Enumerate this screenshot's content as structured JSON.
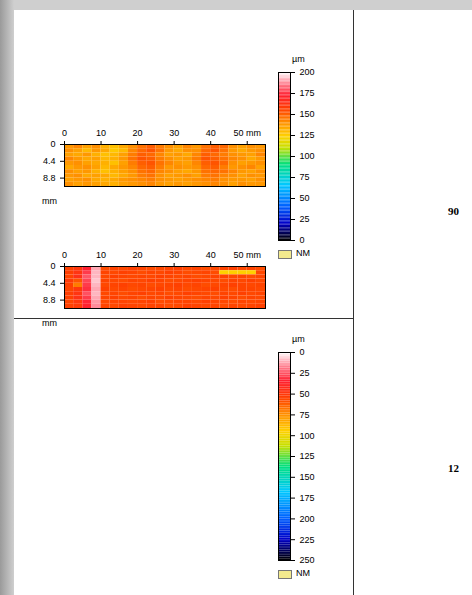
{
  "chart_data": [
    {
      "type": "heatmap",
      "xlim": [
        0,
        55
      ],
      "xticks": [
        0,
        10,
        20,
        30,
        40,
        {
          "value": 50,
          "label": "50 mm"
        }
      ],
      "ylim": [
        0,
        11
      ],
      "yticks": [
        0,
        4.4,
        8.8
      ],
      "y_label": "mm",
      "cells": {
        "x_bins": [
          0,
          2.5,
          5,
          7.5,
          10,
          12.5,
          15,
          17.5,
          20,
          22.5,
          25,
          27.5,
          30,
          32.5,
          35,
          37.5,
          40,
          42.5,
          45,
          47.5,
          50,
          52.5,
          55
        ],
        "y_bins": [
          0,
          1.1,
          2.2,
          3.3,
          4.4,
          5.5,
          6.6,
          7.7,
          8.8,
          9.9,
          11
        ],
        "values": [
          [
            138,
            142,
            136,
            140,
            132,
            128,
            134,
            140,
            146,
            150,
            144,
            140,
            136,
            142,
            138,
            146,
            150,
            148,
            140,
            136,
            140,
            138
          ],
          [
            140,
            136,
            130,
            138,
            134,
            126,
            130,
            142,
            148,
            152,
            146,
            138,
            134,
            140,
            140,
            148,
            152,
            146,
            138,
            134,
            138,
            140
          ],
          [
            136,
            134,
            138,
            132,
            128,
            130,
            136,
            144,
            150,
            148,
            142,
            136,
            138,
            134,
            142,
            150,
            148,
            144,
            140,
            138,
            136,
            142
          ],
          [
            142,
            138,
            134,
            136,
            130,
            132,
            138,
            146,
            152,
            150,
            144,
            140,
            136,
            138,
            144,
            152,
            150,
            146,
            142,
            140,
            134,
            138
          ],
          [
            138,
            140,
            136,
            134,
            132,
            128,
            136,
            144,
            150,
            152,
            146,
            142,
            138,
            136,
            142,
            150,
            152,
            148,
            140,
            136,
            138,
            140
          ],
          [
            134,
            138,
            140,
            136,
            130,
            134,
            138,
            142,
            148,
            150,
            144,
            138,
            140,
            138,
            140,
            148,
            150,
            144,
            138,
            140,
            142,
            136
          ],
          [
            140,
            136,
            138,
            132,
            128,
            132,
            136,
            140,
            146,
            148,
            142,
            140,
            136,
            134,
            138,
            146,
            148,
            146,
            142,
            138,
            136,
            140
          ],
          [
            138,
            140,
            134,
            136,
            134,
            130,
            134,
            138,
            144,
            146,
            140,
            136,
            138,
            140,
            136,
            144,
            146,
            142,
            140,
            136,
            140,
            138
          ],
          [
            136,
            138,
            140,
            134,
            132,
            134,
            138,
            140,
            142,
            144,
            140,
            138,
            136,
            138,
            140,
            142,
            144,
            140,
            138,
            138,
            136,
            140
          ],
          [
            140,
            136,
            138,
            136,
            134,
            132,
            136,
            138,
            140,
            142,
            138,
            136,
            138,
            136,
            138,
            140,
            142,
            140,
            136,
            140,
            138,
            138
          ]
        ]
      },
      "colorbar": {
        "label": "µm",
        "range": [
          0,
          200
        ],
        "ticks": [
          0,
          25,
          50,
          75,
          100,
          125,
          150,
          175,
          200
        ]
      },
      "no_data_label": "NM"
    },
    {
      "type": "heatmap",
      "xlim": [
        0,
        55
      ],
      "xticks": [
        0,
        10,
        20,
        30,
        40,
        {
          "value": 50,
          "label": "50 mm"
        }
      ],
      "ylim": [
        0,
        11
      ],
      "yticks": [
        0,
        4.4,
        8.8
      ],
      "y_label": "mm",
      "cells": {
        "x_bins": [
          0,
          2.5,
          5,
          7.5,
          10,
          12.5,
          15,
          17.5,
          20,
          22.5,
          25,
          27.5,
          30,
          32.5,
          35,
          37.5,
          40,
          42.5,
          45,
          47.5,
          50,
          52.5,
          55
        ],
        "y_bins": [
          0,
          1.1,
          2.2,
          3.3,
          4.4,
          5.5,
          6.6,
          7.7,
          8.8,
          9.9,
          11
        ],
        "values": [
          [
            55,
            50,
            35,
            12,
            58,
            56,
            57,
            55,
            56,
            58,
            57,
            56,
            55,
            57,
            56,
            58,
            57,
            56,
            55,
            57,
            56,
            58
          ],
          [
            54,
            48,
            30,
            10,
            56,
            57,
            55,
            56,
            58,
            56,
            57,
            55,
            56,
            58,
            57,
            56,
            58,
            95,
            95,
            95,
            95,
            57
          ],
          [
            56,
            45,
            25,
            10,
            57,
            55,
            56,
            57,
            56,
            57,
            55,
            56,
            57,
            56,
            58,
            57,
            56,
            55,
            57,
            56,
            58,
            56
          ],
          [
            52,
            60,
            28,
            8,
            56,
            57,
            58,
            56,
            57,
            55,
            56,
            58,
            57,
            56,
            55,
            56,
            57,
            58,
            56,
            57,
            55,
            57
          ],
          [
            55,
            70,
            30,
            10,
            57,
            56,
            55,
            57,
            56,
            58,
            57,
            56,
            55,
            57,
            56,
            58,
            57,
            56,
            55,
            56,
            57,
            56
          ],
          [
            56,
            50,
            32,
            12,
            55,
            57,
            56,
            58,
            57,
            56,
            55,
            57,
            56,
            58,
            57,
            56,
            55,
            57,
            58,
            56,
            56,
            57
          ],
          [
            54,
            48,
            26,
            10,
            57,
            56,
            58,
            56,
            55,
            57,
            56,
            58,
            57,
            55,
            56,
            57,
            58,
            56,
            57,
            55,
            57,
            56
          ],
          [
            55,
            46,
            30,
            12,
            56,
            55,
            57,
            56,
            58,
            56,
            57,
            55,
            56,
            57,
            58,
            56,
            57,
            55,
            56,
            58,
            56,
            57
          ],
          [
            56,
            50,
            34,
            14,
            57,
            56,
            56,
            57,
            56,
            55,
            58,
            57,
            56,
            56,
            57,
            55,
            56,
            57,
            58,
            56,
            57,
            56
          ],
          [
            55,
            52,
            36,
            16,
            56,
            57,
            55,
            56,
            57,
            56,
            56,
            58,
            57,
            55,
            56,
            57,
            56,
            58,
            56,
            57,
            56,
            55
          ]
        ]
      },
      "colorbar": {
        "label": "µm",
        "range": [
          250,
          0
        ],
        "ticks": [
          0,
          25,
          50,
          75,
          100,
          125,
          150,
          175,
          200,
          225,
          250
        ]
      },
      "no_data_label": "NM"
    }
  ],
  "side_labels": [
    "90",
    "12"
  ]
}
